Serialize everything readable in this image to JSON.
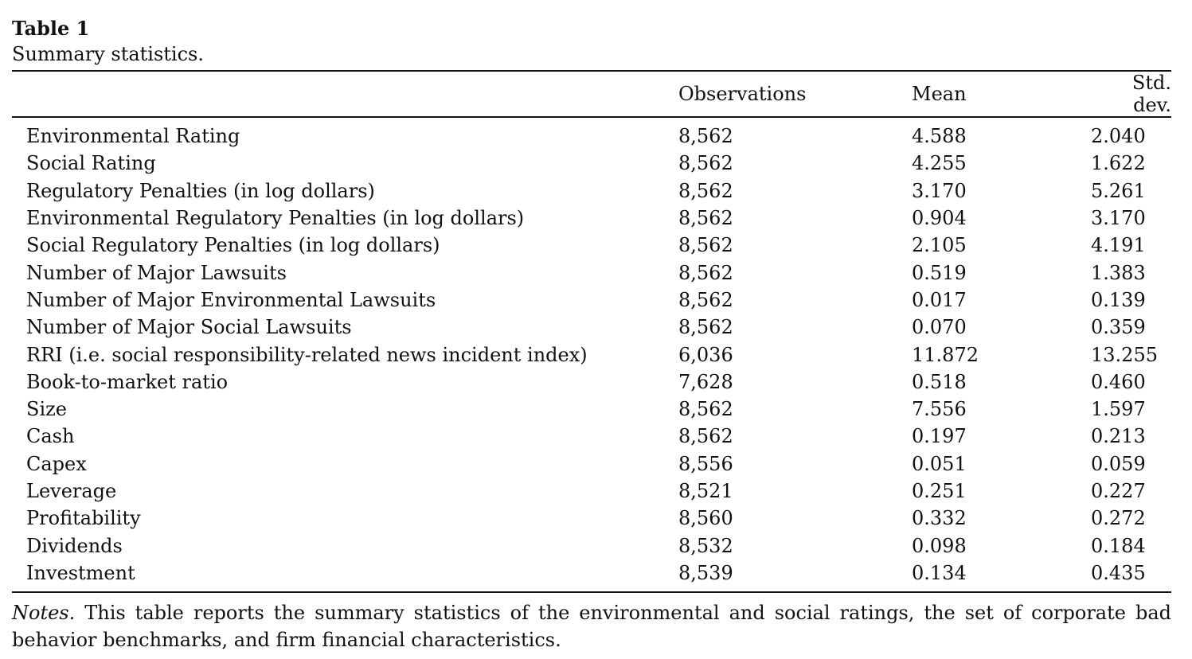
{
  "table": {
    "label": "Table 1",
    "caption": "Summary statistics.",
    "headers": [
      "",
      "Observations",
      "Mean",
      "Std. dev."
    ],
    "rows": [
      {
        "variable": "Environmental Rating",
        "observations": "8,562",
        "mean": "4.588",
        "std": "2.040"
      },
      {
        "variable": "Social Rating",
        "observations": "8,562",
        "mean": "4.255",
        "std": "1.622"
      },
      {
        "variable": "Regulatory Penalties (in log dollars)",
        "observations": "8,562",
        "mean": "3.170",
        "std": "5.261"
      },
      {
        "variable": "Environmental Regulatory Penalties (in log dollars)",
        "observations": "8,562",
        "mean": "0.904",
        "std": "3.170"
      },
      {
        "variable": "Social Regulatory Penalties (in log dollars)",
        "observations": "8,562",
        "mean": "2.105",
        "std": "4.191"
      },
      {
        "variable": "Number of Major Lawsuits",
        "observations": "8,562",
        "mean": "0.519",
        "std": "1.383"
      },
      {
        "variable": "Number of Major Environmental Lawsuits",
        "observations": "8,562",
        "mean": "0.017",
        "std": "0.139"
      },
      {
        "variable": "Number of Major Social Lawsuits",
        "observations": "8,562",
        "mean": "0.070",
        "std": "0.359"
      },
      {
        "variable": "RRI (i.e. social responsibility-related news incident index)",
        "observations": "6,036",
        "mean": "11.872",
        "std": "13.255"
      },
      {
        "variable": "Book-to-market ratio",
        "observations": "7,628",
        "mean": "0.518",
        "std": "0.460"
      },
      {
        "variable": "Size",
        "observations": "8,562",
        "mean": "7.556",
        "std": "1.597"
      },
      {
        "variable": "Cash",
        "observations": "8,562",
        "mean": "0.197",
        "std": "0.213"
      },
      {
        "variable": "Capex",
        "observations": "8,556",
        "mean": "0.051",
        "std": "0.059"
      },
      {
        "variable": "Leverage",
        "observations": "8,521",
        "mean": "0.251",
        "std": "0.227"
      },
      {
        "variable": "Profitability",
        "observations": "8,560",
        "mean": "0.332",
        "std": "0.272"
      },
      {
        "variable": "Dividends",
        "observations": "8,532",
        "mean": "0.098",
        "std": "0.184"
      },
      {
        "variable": "Investment",
        "observations": "8,539",
        "mean": "0.134",
        "std": "0.435"
      }
    ],
    "notes_label": "Notes.",
    "notes_text": " This table reports the summary statistics of the environmental and social ratings, the set of corporate bad behavior benchmarks, and firm financial characteristics."
  }
}
